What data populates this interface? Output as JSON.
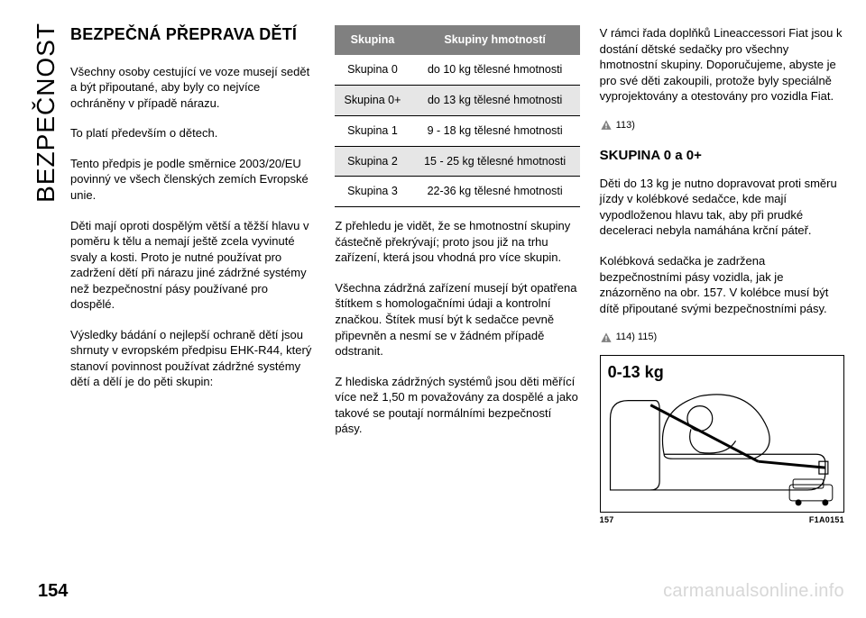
{
  "side_label": "BEZPEČNOST",
  "page_number": "154",
  "watermark": "carmanualsonline.info",
  "col1": {
    "title": "BEZPEČNÁ PŘEPRAVA DĚTÍ",
    "p1": "Všechny osoby cestující ve voze musejí sedět a být připoutané, aby byly co nejvíce ochráněny v případě nárazu.",
    "p2": "To platí především o dětech.",
    "p3": "Tento předpis je podle směrnice 2003/20/EU povinný ve všech členských zemích Evropské unie.",
    "p4": "Děti mají oproti dospělým větší a těžší hlavu v poměru k tělu a nemají ještě zcela vyvinuté svaly a kosti. Proto je nutné používat pro zadržení dětí při nárazu jiné zádržné systémy než bezpečnostní pásy používané pro dospělé.",
    "p5": "Výsledky bádání o nejlepší ochraně dětí jsou shrnuty v evropském předpisu EHK-R44, který stanoví povinnost používat zádržné systémy dětí a dělí je do pěti skupin:"
  },
  "table": {
    "header_left": "Skupina",
    "header_right": "Skupiny hmotností",
    "rows": [
      {
        "g": "Skupina 0",
        "w": "do 10 kg tělesné hmotnosti",
        "shade": false
      },
      {
        "g": "Skupina 0+",
        "w": "do 13 kg tělesné hmotnosti",
        "shade": true
      },
      {
        "g": "Skupina 1",
        "w": "9 - 18 kg tělesné hmotnosti",
        "shade": false
      },
      {
        "g": "Skupina 2",
        "w": "15 - 25 kg tělesné hmotnosti",
        "shade": true
      },
      {
        "g": "Skupina 3",
        "w": "22-36 kg tělesné hmotnosti",
        "shade": false
      }
    ]
  },
  "col2": {
    "p1": "Z přehledu je vidět, že se hmotnostní skupiny částečně překrývají; proto jsou již na trhu zařízení, která jsou vhodná pro více skupin.",
    "p2": "Všechna zádržná zařízení musejí být opatřena štítkem s homologačními údaji a kontrolní značkou. Štítek musí být k sedačce pevně připevněn a nesmí se v žádném případě odstranit.",
    "p3": "Z hlediska zádržných systémů jsou děti měřící více než 1,50 m považovány za dospělé a jako takové se poutají normálními bezpečností pásy."
  },
  "col3": {
    "p1": "V rámci řada doplňků Lineaccessori Fiat jsou k dostání dětské sedačky pro všechny hmotnostní skupiny. Doporučujeme, abyste je pro své děti zakoupili, protože byly speciálně vyprojektovány a otestovány pro vozidla Fiat.",
    "warn1": "113)",
    "heading": "SKUPINA 0 a 0+",
    "p2": "Děti do 13 kg je nutno dopravovat proti směru jízdy v kolébkové sedačce, kde mají vypodloženou hlavu tak, aby při prudké deceleraci nebyla namáhána krční páteř.",
    "p3": "Kolébková sedačka je zadržena bezpečnostními pásy vozidla, jak je znázorněno na obr. 157. V kolébce musí být dítě připoutané svými bezpečnostními pásy.",
    "warn2": "114) 115)",
    "figure_label": "0-13 kg",
    "figure_num": "157",
    "figure_code": "F1A0151"
  }
}
